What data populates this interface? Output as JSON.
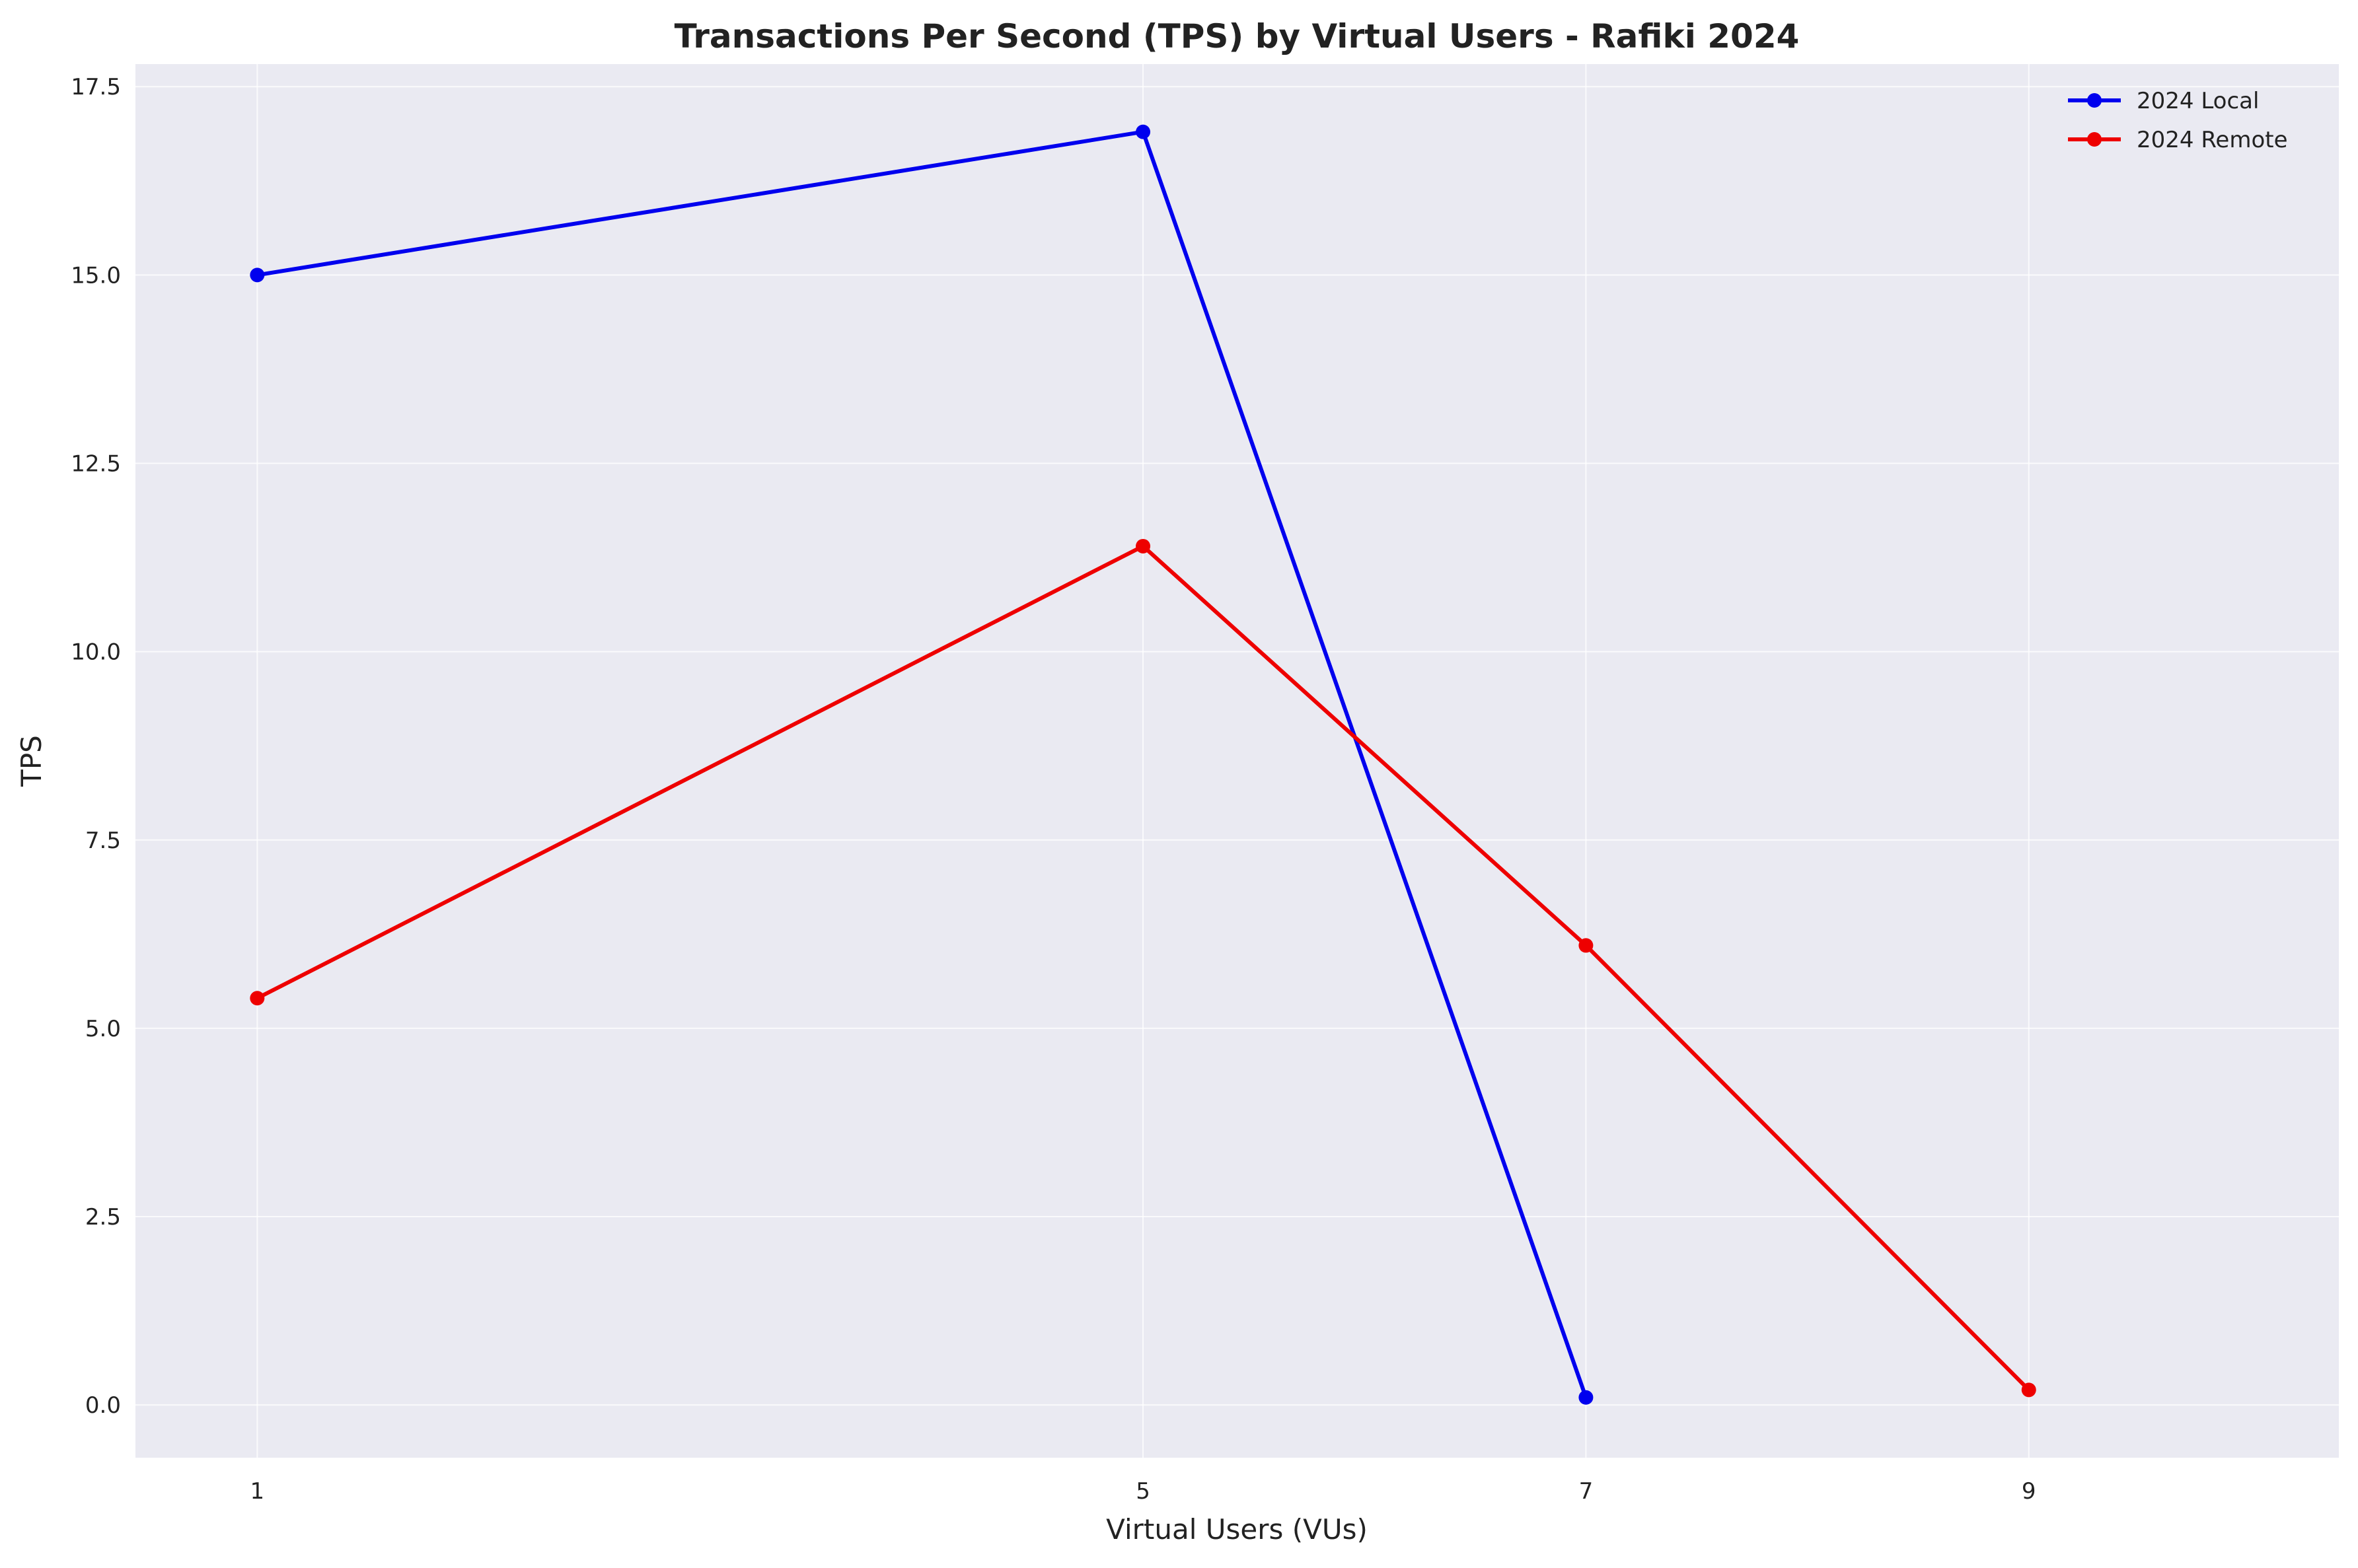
{
  "chart_data": {
    "type": "line",
    "title": "Transactions Per Second (TPS) by Virtual Users - Rafiki 2024",
    "xlabel": "Virtual Users (VUs)",
    "ylabel": "TPS",
    "xlim": [
      0.45,
      10.4
    ],
    "ylim": [
      -0.7,
      17.8
    ],
    "x_ticks": [
      1,
      5,
      7,
      9
    ],
    "x_tick_labels": [
      "1",
      "5",
      "7",
      "9"
    ],
    "y_ticks": [
      0,
      2.5,
      5,
      7.5,
      10,
      12.5,
      15,
      17.5
    ],
    "y_tick_labels": [
      "0.0",
      "2.5",
      "5.0",
      "7.5",
      "10.0",
      "12.5",
      "15.0",
      "17.5"
    ],
    "grid": true,
    "legend_position": "top-right",
    "background_color": "#eaeaf2",
    "series": [
      {
        "name": "2024 Local",
        "color": "#0000ee",
        "x": [
          1,
          5,
          7
        ],
        "y": [
          15.0,
          16.9,
          0.1
        ]
      },
      {
        "name": "2024 Remote",
        "color": "#ee0000",
        "x": [
          1,
          5,
          7,
          9
        ],
        "y": [
          5.4,
          11.4,
          6.1,
          0.2
        ]
      }
    ]
  }
}
